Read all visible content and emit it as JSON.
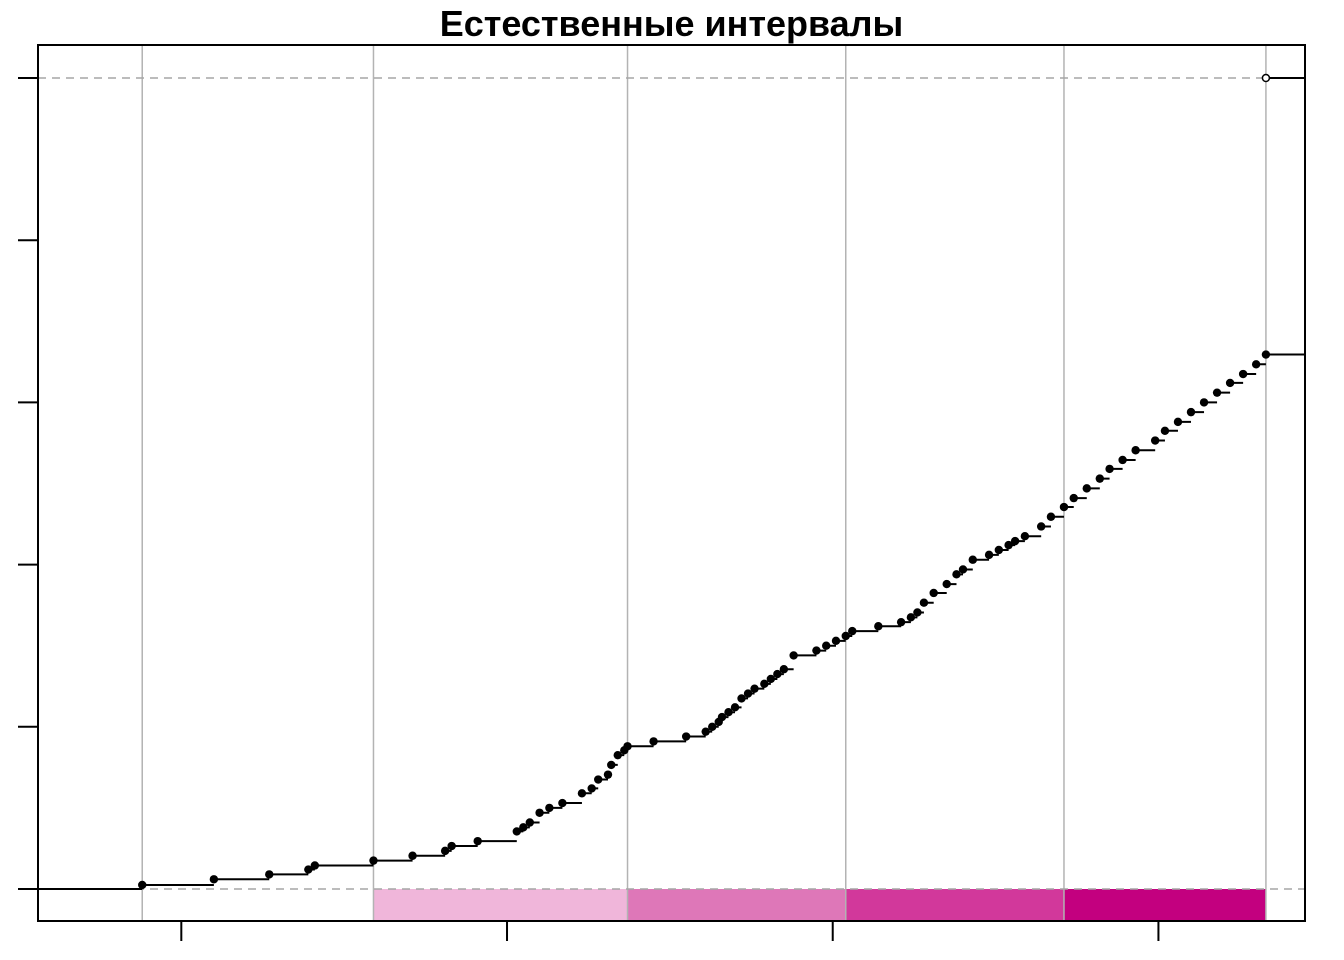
{
  "chart_data": {
    "type": "line",
    "title": "Естественные интервалы",
    "xlabel": "",
    "ylabel": "",
    "xlim": [
      -4.4,
      34.5
    ],
    "ylim": [
      -0.02,
      1.02
    ],
    "x_ticks": [
      0,
      10,
      20,
      30
    ],
    "y_ticks": [
      0,
      0.2,
      0.4,
      0.6,
      0.8,
      1.0
    ],
    "show_tick_labels": false,
    "grid": false,
    "legend": "none",
    "reference_lines_y": [
      0,
      1
    ],
    "class_breaks": [
      -1.2,
      5.9,
      13.7,
      20.4,
      27.1,
      33.3
    ],
    "class_colors": [
      "#ffffff",
      "#f0b6da",
      "#de77b8",
      "#d2389b",
      "#c3007f"
    ],
    "point_color": "#000000",
    "rug_color": "#c3007f",
    "series": [
      {
        "values": [
          [
            -1.2,
            0.005
          ],
          [
            1.0,
            0.012
          ],
          [
            2.7,
            0.018
          ],
          [
            3.9,
            0.024
          ],
          [
            4.1,
            0.029
          ],
          [
            5.9,
            0.035
          ],
          [
            7.1,
            0.041
          ],
          [
            8.1,
            0.047
          ],
          [
            8.3,
            0.053
          ],
          [
            9.1,
            0.059
          ],
          [
            10.3,
            0.071
          ],
          [
            10.5,
            0.076
          ],
          [
            10.7,
            0.082
          ],
          [
            11.0,
            0.094
          ],
          [
            11.3,
            0.1
          ],
          [
            11.7,
            0.106
          ],
          [
            12.3,
            0.118
          ],
          [
            12.6,
            0.124
          ],
          [
            12.8,
            0.135
          ],
          [
            13.1,
            0.141
          ],
          [
            13.2,
            0.153
          ],
          [
            13.4,
            0.165
          ],
          [
            13.6,
            0.171
          ],
          [
            13.7,
            0.176
          ],
          [
            14.5,
            0.182
          ],
          [
            15.5,
            0.188
          ],
          [
            16.1,
            0.194
          ],
          [
            16.3,
            0.2
          ],
          [
            16.5,
            0.206
          ],
          [
            16.6,
            0.212
          ],
          [
            16.8,
            0.218
          ],
          [
            17.0,
            0.224
          ],
          [
            17.2,
            0.235
          ],
          [
            17.4,
            0.241
          ],
          [
            17.6,
            0.247
          ],
          [
            17.9,
            0.253
          ],
          [
            18.1,
            0.259
          ],
          [
            18.3,
            0.265
          ],
          [
            18.5,
            0.271
          ],
          [
            18.8,
            0.288
          ],
          [
            19.5,
            0.294
          ],
          [
            19.8,
            0.3
          ],
          [
            20.1,
            0.306
          ],
          [
            20.4,
            0.312
          ],
          [
            20.6,
            0.318
          ],
          [
            21.4,
            0.324
          ],
          [
            22.1,
            0.329
          ],
          [
            22.4,
            0.335
          ],
          [
            22.6,
            0.341
          ],
          [
            22.8,
            0.353
          ],
          [
            23.1,
            0.365
          ],
          [
            23.5,
            0.376
          ],
          [
            23.8,
            0.388
          ],
          [
            24.0,
            0.394
          ],
          [
            24.3,
            0.406
          ],
          [
            24.8,
            0.412
          ],
          [
            25.1,
            0.418
          ],
          [
            25.4,
            0.424
          ],
          [
            25.6,
            0.429
          ],
          [
            25.9,
            0.435
          ],
          [
            26.4,
            0.447
          ],
          [
            26.7,
            0.459
          ],
          [
            27.1,
            0.471
          ],
          [
            27.4,
            0.482
          ],
          [
            27.8,
            0.494
          ],
          [
            28.2,
            0.506
          ],
          [
            28.5,
            0.518
          ],
          [
            28.9,
            0.529
          ],
          [
            29.3,
            0.541
          ],
          [
            29.9,
            0.553
          ],
          [
            30.2,
            0.565
          ],
          [
            30.6,
            0.576
          ],
          [
            31.0,
            0.588
          ],
          [
            31.4,
            0.6
          ],
          [
            31.8,
            0.612
          ],
          [
            32.2,
            0.624
          ],
          [
            32.6,
            0.635
          ],
          [
            33.0,
            0.647
          ],
          [
            33.3,
            0.659
          ]
        ]
      }
    ]
  }
}
